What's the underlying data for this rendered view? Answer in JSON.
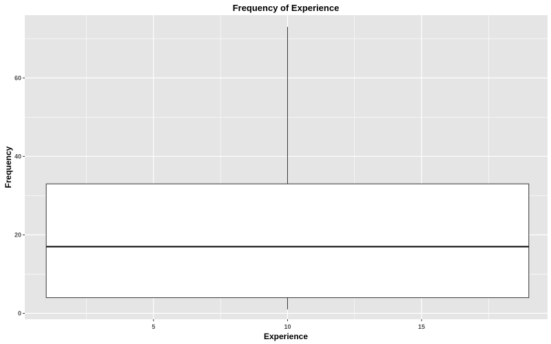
{
  "chart_data": {
    "type": "boxplot",
    "title": "Frequency of Experience",
    "xlabel": "Experience",
    "ylabel": "Frequency",
    "xlim": [
      0.2,
      19.7
    ],
    "ylim": [
      -1.5,
      76
    ],
    "x_ticks": [
      5,
      10,
      15
    ],
    "x_minor_ticks": [
      2.5,
      7.5,
      12.5,
      17.5
    ],
    "y_ticks": [
      0,
      20,
      40,
      60
    ],
    "y_minor_ticks": [
      10,
      30,
      50,
      70
    ],
    "box": {
      "x_min": 1,
      "x_max": 19,
      "x_center": 10,
      "lower_whisker": 1,
      "q1": 4,
      "median": 17,
      "q3": 33,
      "upper_whisker": 73
    },
    "grid": true,
    "legend": "none",
    "colors": {
      "panel": "#e5e5e5",
      "grid": "#ffffff",
      "box_fill": "#ffffff",
      "box_stroke": "#333333"
    }
  }
}
